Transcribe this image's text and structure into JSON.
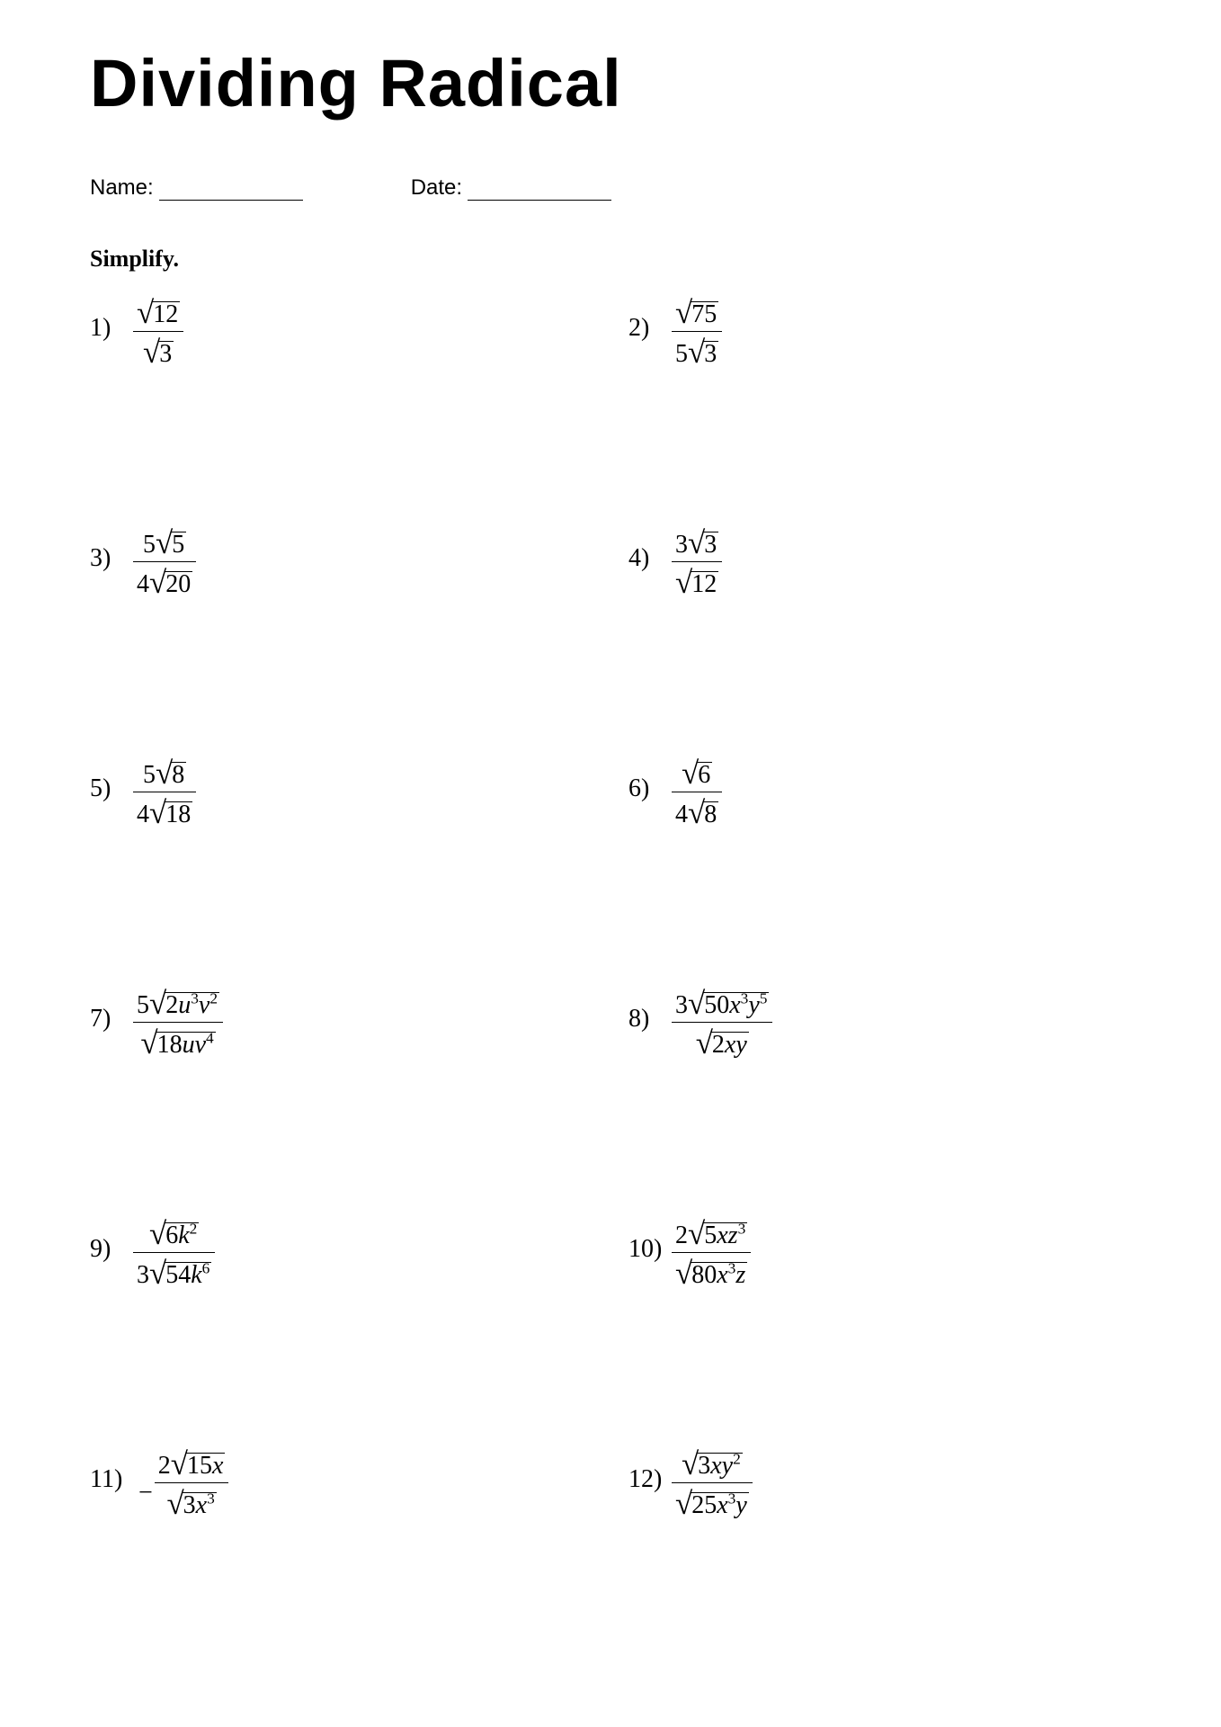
{
  "title": "Dividing Radical",
  "name_label": "Name:",
  "date_label": "Date:",
  "instruction": "Simplify.",
  "fontsize_title": 74,
  "fontsize_meta": 24,
  "fontsize_instruction": 26,
  "fontsize_problem": 28,
  "text_color": "#000000",
  "background_color": "#ffffff",
  "problems": [
    {
      "n": "1)",
      "top_coef": "",
      "top_rad": "12",
      "bot_coef": "",
      "bot_rad": "3",
      "neg": false
    },
    {
      "n": "2)",
      "top_coef": "",
      "top_rad": "75",
      "bot_coef": "5",
      "bot_rad": "3",
      "neg": false
    },
    {
      "n": "3)",
      "top_coef": "5",
      "top_rad": "5",
      "bot_coef": "4",
      "bot_rad": "20",
      "neg": false
    },
    {
      "n": "4)",
      "top_coef": "3",
      "top_rad": "3",
      "bot_coef": "",
      "bot_rad": "12",
      "neg": false
    },
    {
      "n": "5)",
      "top_coef": "5",
      "top_rad": "8",
      "bot_coef": "4",
      "bot_rad": "18",
      "neg": false
    },
    {
      "n": "6)",
      "top_coef": "",
      "top_rad": "6",
      "bot_coef": "4",
      "bot_rad": "8",
      "neg": false
    },
    {
      "n": "7)",
      "top_coef": "5",
      "top_rad_html": "2<span class='it'>u</span><sup>3</sup><span class='it'>v</span><sup>2</sup>",
      "bot_coef": "",
      "bot_rad_html": "18<span class='it'>u</span><span class='it'>v</span><sup>4</sup>",
      "neg": false
    },
    {
      "n": "8)",
      "top_coef": "3",
      "top_rad_html": "50<span class='it'>x</span><sup>3</sup><span class='it'>y</span><sup>5</sup>",
      "bot_coef": "",
      "bot_rad_html": "2<span class='it'>x</span><span class='it'>y</span>",
      "neg": false
    },
    {
      "n": "9)",
      "top_coef": "",
      "top_rad_html": "6<span class='it'>k</span><sup>2</sup>",
      "bot_coef": "3",
      "bot_rad_html": "54<span class='it'>k</span><sup>6</sup>",
      "neg": false
    },
    {
      "n": "10)",
      "top_coef": "2",
      "top_rad_html": "5<span class='it'>x</span><span class='it'>z</span><sup>3</sup>",
      "bot_coef": "",
      "bot_rad_html": "80<span class='it'>x</span><sup>3</sup><span class='it'>z</span>",
      "neg": false
    },
    {
      "n": "11)",
      "top_coef": "2",
      "top_rad_html": "15<span class='it'>x</span>",
      "bot_coef": "",
      "bot_rad_html": "3<span class='it'>x</span><sup>3</sup>",
      "neg": true
    },
    {
      "n": "12)",
      "top_coef": "",
      "top_rad_html": "3<span class='it'>x</span><span class='it'>y</span><sup>2</sup>",
      "bot_coef": "",
      "bot_rad_html": "25<span class='it'>x</span><sup>3</sup><span class='it'>y</span>",
      "neg": false
    }
  ]
}
